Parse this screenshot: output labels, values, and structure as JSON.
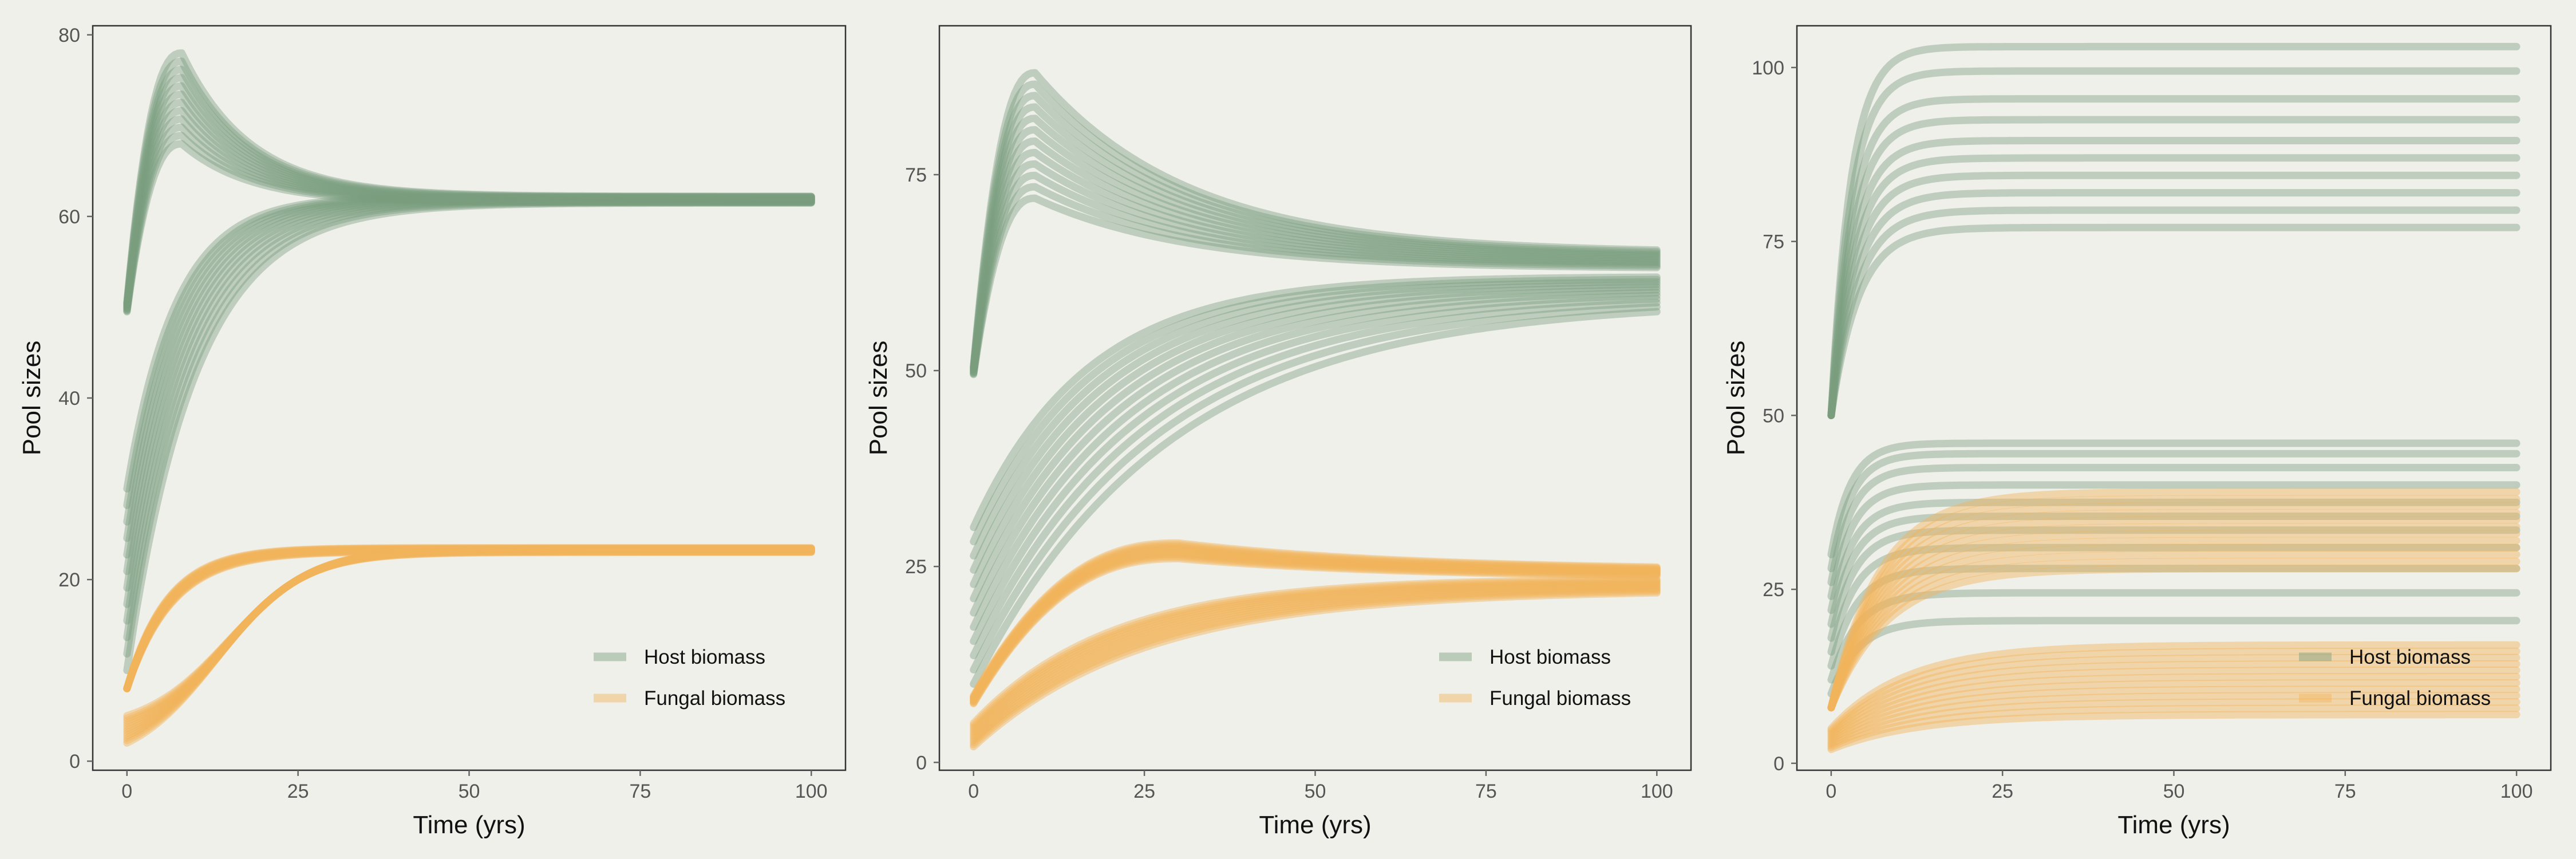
{
  "colors": {
    "background": "#f0f0eb",
    "host": "#7a9e7e",
    "fungal": "#f2b45c",
    "frame": "#333333",
    "tick_label": "#555555",
    "axis_title": "#111111"
  },
  "legend": {
    "position": "bottom-right",
    "items": [
      {
        "label": "Host biomass",
        "color": "#7a9e7e"
      },
      {
        "label": "Fungal biomass",
        "color": "#f2b45c"
      }
    ]
  },
  "chart_data": [
    {
      "type": "line",
      "xlabel": "Time (yrs)",
      "ylabel": "Pool sizes",
      "xlim": [
        -5,
        105
      ],
      "ylim": [
        -1,
        81
      ],
      "xticks": [
        0,
        25,
        50,
        75,
        100
      ],
      "yticks": [
        0,
        20,
        40,
        60,
        80
      ],
      "grid": false,
      "legend_position": "bottom-right",
      "series": [
        {
          "group": "Host biomass",
          "shape": "hump",
          "start": 50,
          "start_spread": [
            49.5,
            50.5
          ],
          "peak_x": 8,
          "peak_range": [
            68,
            78
          ],
          "end": 61.8,
          "end_range": [
            61.5,
            62.2
          ],
          "count": 12
        },
        {
          "group": "Host biomass",
          "shape": "saturating",
          "start_range": [
            10,
            30
          ],
          "rate_range": [
            0.1,
            0.14
          ],
          "end_range": [
            61.5,
            62.2
          ],
          "count": 12
        },
        {
          "group": "Fungal biomass",
          "shape": "saturating",
          "start": 8,
          "rate_range": [
            0.15,
            0.17
          ],
          "end_range": [
            23.1,
            23.5
          ],
          "count": 12
        },
        {
          "group": "Fungal biomass",
          "shape": "sigmoid",
          "start_range": [
            2,
            5
          ],
          "midpoint_range": [
            13,
            15
          ],
          "steepness": 0.16,
          "end_range": [
            23,
            23.4
          ],
          "count": 12
        }
      ]
    },
    {
      "type": "line",
      "xlabel": "Time (yrs)",
      "ylabel": "Pool sizes",
      "xlim": [
        -5,
        105
      ],
      "ylim": [
        -1,
        94
      ],
      "xticks": [
        0,
        25,
        50,
        75,
        100
      ],
      "yticks": [
        0,
        25,
        50,
        75
      ],
      "grid": false,
      "legend_position": "bottom-right",
      "series": [
        {
          "group": "Host biomass",
          "shape": "hump",
          "start": 50,
          "start_spread": [
            49.5,
            50.5
          ],
          "peak_x": 9,
          "peak_range": [
            72,
            88
          ],
          "end_range": [
            63,
            65
          ],
          "decay_rate": 0.045,
          "count": 12
        },
        {
          "group": "Host biomass",
          "shape": "saturating",
          "start_range": [
            10,
            30
          ],
          "rate_range": [
            0.035,
            0.06
          ],
          "end_range": [
            59,
            62
          ],
          "count": 12
        },
        {
          "group": "Fungal biomass",
          "shape": "hump",
          "start": 8,
          "start_spread": [
            7.5,
            8.5
          ],
          "peak_x": 30,
          "peak_range": [
            26,
            28
          ],
          "end_range": [
            23.5,
            24.5
          ],
          "decay_rate": 0.03,
          "count": 12
        },
        {
          "group": "Fungal biomass",
          "shape": "saturating",
          "start_range": [
            2,
            5
          ],
          "rate_range": [
            0.04,
            0.05
          ],
          "end_range": [
            22,
            23.5
          ],
          "count": 12
        }
      ]
    },
    {
      "type": "line",
      "xlabel": "Time (yrs)",
      "ylabel": "Pool sizes",
      "xlim": [
        -5,
        105
      ],
      "ylim": [
        -1,
        106
      ],
      "xticks": [
        0,
        25,
        50,
        75,
        100
      ],
      "yticks": [
        0,
        25,
        50,
        75,
        100
      ],
      "grid": false,
      "legend_position": "bottom-right",
      "series": [
        {
          "group": "Host biomass",
          "shape": "saturating",
          "start": 50,
          "rate_range": [
            0.25,
            0.35
          ],
          "end_values": [
            77,
            79.5,
            82,
            84.5,
            87,
            89.5,
            92.5,
            95.5,
            99.5,
            103
          ],
          "count": 10
        },
        {
          "group": "Host biomass",
          "shape": "saturating",
          "start_range": [
            10,
            30
          ],
          "rate_range": [
            0.25,
            0.35
          ],
          "end_values": [
            20.5,
            24.5,
            28,
            31,
            33.5,
            35.5,
            37.5,
            40,
            42.5,
            44.5,
            46
          ],
          "count": 11
        },
        {
          "group": "Fungal biomass",
          "shape": "saturating",
          "start": 8,
          "rate_range": [
            0.12,
            0.14
          ],
          "end_range": [
            28,
            39
          ],
          "count": 12
        },
        {
          "group": "Fungal biomass",
          "shape": "saturating",
          "start_range": [
            2,
            5
          ],
          "rate_range": [
            0.08,
            0.09
          ],
          "end_range": [
            7,
            17
          ],
          "count": 12
        }
      ]
    }
  ]
}
